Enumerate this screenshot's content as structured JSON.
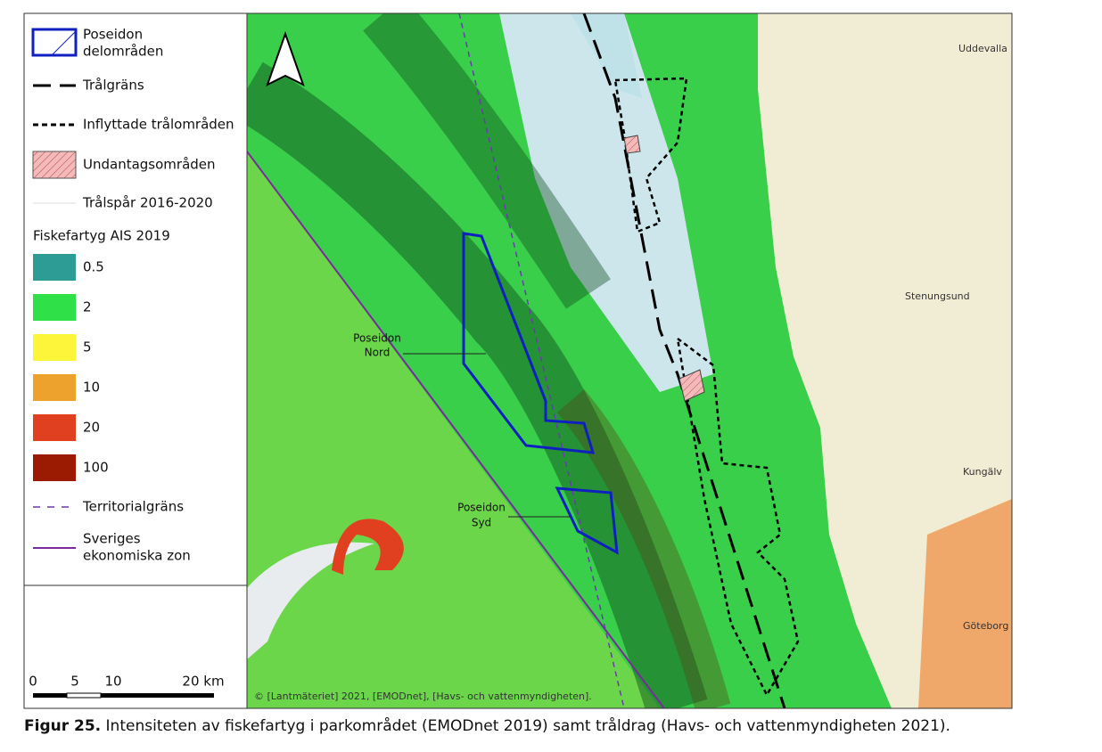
{
  "legend": {
    "items": [
      {
        "label": [
          "Poseidon",
          "delområden"
        ]
      },
      {
        "label": [
          "Trålgräns"
        ]
      },
      {
        "label": [
          "Inflyttade trålområden"
        ]
      },
      {
        "label": [
          "Undantagsområden"
        ]
      },
      {
        "label": [
          "Trålspår 2016-2020"
        ]
      }
    ],
    "ais": {
      "title": "Fiskefartyg AIS 2019",
      "classes": [
        {
          "label": "0.5",
          "color": "#2c9c94"
        },
        {
          "label": "2",
          "color": "#2fe048"
        },
        {
          "label": "5",
          "color": "#fdf53a"
        },
        {
          "label": "10",
          "color": "#eea22e"
        },
        {
          "label": "20",
          "color": "#e0401f"
        },
        {
          "label": "100",
          "color": "#9a1a02"
        }
      ]
    },
    "lines": [
      {
        "label": [
          "Territorialgräns"
        ]
      },
      {
        "label": [
          "Sveriges",
          "ekonomiska zon"
        ]
      }
    ]
  },
  "scale_bar": {
    "labels": [
      "0",
      "5",
      "10",
      "20 km"
    ]
  },
  "map": {
    "places": [
      "Uddevalla",
      "Stenungsund",
      "Kungälv",
      "Göteborg"
    ],
    "areas": [
      [
        "Poseidon",
        "Nord"
      ],
      [
        "Poseidon",
        "Syd"
      ]
    ],
    "attribution": "© [Lantmäteriet] 2021, [EMODnet], [Havs- och vattenmyndigheten]."
  },
  "caption": {
    "label": "Figur 25.",
    "text": "Intensiteten av fiskefartyg i parkområdet (EMODnet 2019) samt tråldrag (Havs- och vattenmyndigheten 2021)."
  }
}
